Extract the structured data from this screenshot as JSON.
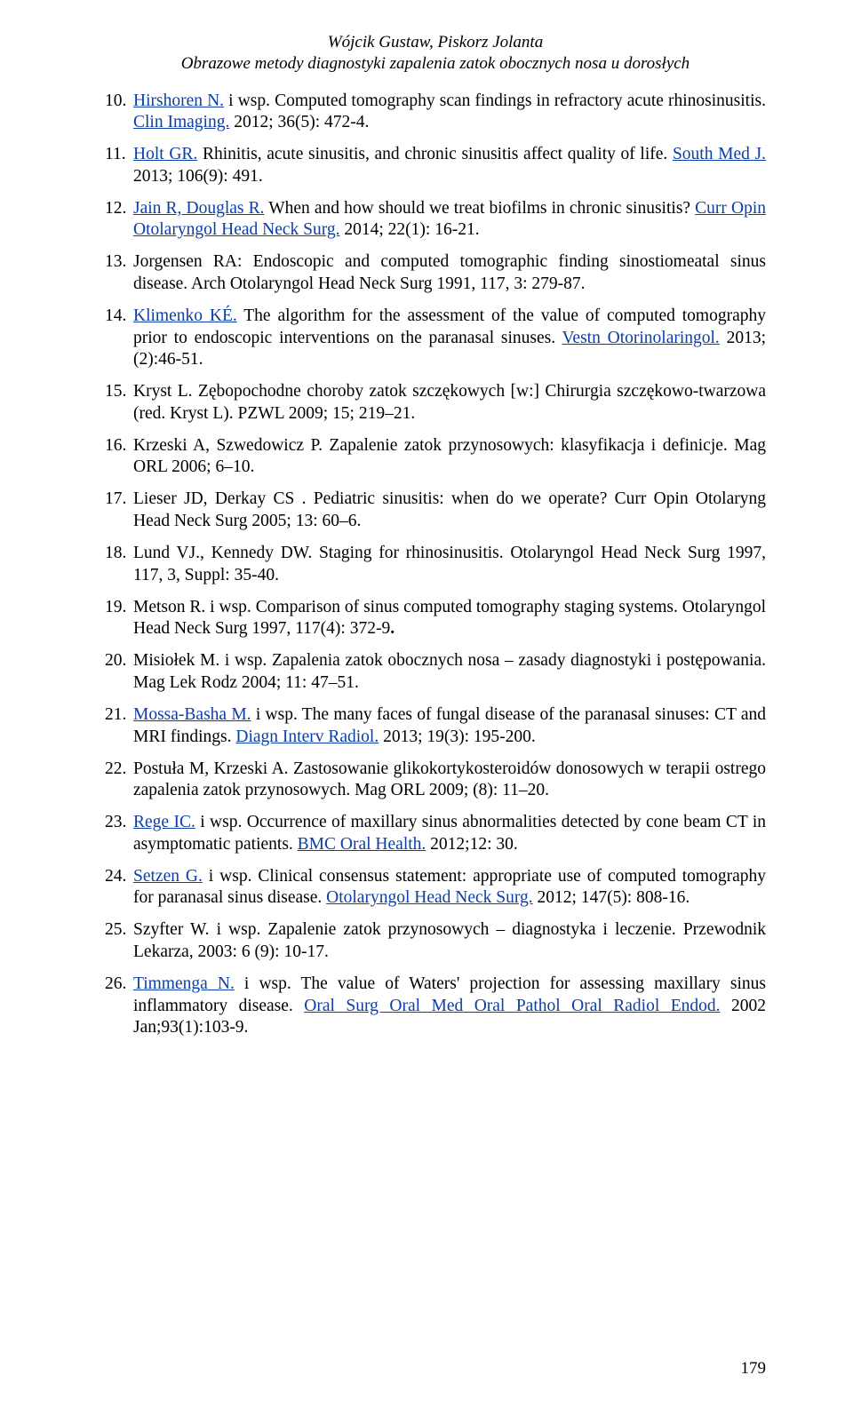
{
  "runningHead": {
    "authors": "Wójcik Gustaw, Piskorz Jolanta",
    "title": "Obrazowe metody diagnostyki zapalenia zatok obocznych nosa u dorosłych"
  },
  "references": [
    {
      "pre": "",
      "link1": "Hirshoren N.",
      "mid": " i wsp. Computed tomography scan findings in refractory acute rhinosinusitis. ",
      "link2": "Clin Imaging.",
      "tail": " 2012; 36(5): 472-4."
    },
    {
      "pre": "",
      "link1": "Holt GR.",
      "mid": " Rhinitis, acute sinusitis, and chronic sinusitis affect quality of life. ",
      "link2": "South Med J.",
      "tail": " 2013; 106(9): 491."
    },
    {
      "pre": "",
      "link1": "Jain R, Douglas R.",
      "mid": " When and how should we treat biofilms in chronic sinusitis? ",
      "link2": "Curr Opin Otolaryngol Head Neck Surg.",
      "tail": " 2014; 22(1): 16-21."
    },
    {
      "pre": "Jorgensen RA: Endoscopic and computed tomographic finding sinostiomeatal sinus disease. Arch Otolaryngol Head Neck Surg 1991, 117, 3: 279-87.",
      "link1": "",
      "mid": "",
      "link2": "",
      "tail": ""
    },
    {
      "pre": "",
      "link1": "Klimenko KÉ.",
      "mid": " The algorithm for the assessment of the value of computed tomography prior to endoscopic interventions on the paranasal sinuses. ",
      "link2": "Vestn Otorinolaringol.",
      "tail": " 2013;(2):46-51."
    },
    {
      "pre": "Kryst L. Zębopochodne choroby zatok szczękowych [w:] Chirurgia szczękowo-twarzowa (red. Kryst L). PZWL 2009; 15; 219–21.",
      "link1": "",
      "mid": "",
      "link2": "",
      "tail": ""
    },
    {
      "pre": "Krzeski A, Szwedowicz P. Zapalenie zatok przynosowych: klasyfikacja i definicje. Mag ORL 2006; 6–10.",
      "link1": "",
      "mid": "",
      "link2": "",
      "tail": ""
    },
    {
      "pre": "Lieser JD, Derkay CS . Pediatric sinusitis: when do we operate? Curr Opin Otolaryng Head Neck Surg 2005; 13: 60–6.",
      "link1": "",
      "mid": "",
      "link2": "",
      "tail": ""
    },
    {
      "pre": "Lund VJ., Kennedy DW. Staging for rhinosinusitis. Otolaryngol Head Neck Surg 1997, 117, 3, Suppl: 35-40.",
      "link1": "",
      "mid": "",
      "link2": "",
      "tail": ""
    },
    {
      "pre": "Metson R. i wsp. Comparison of sinus computed tomography staging systems. Otolaryngol Head Neck Surg 1997, 117(4): 372-9",
      "link1": "",
      "mid": "",
      "link2": "",
      "tail": "",
      "boldTail": "."
    },
    {
      "pre": "Misiołek M. i wsp. Zapalenia zatok obocznych nosa – zasady diagnostyki i postępowania. Mag Lek Rodz 2004; 11: 47–51.",
      "link1": "",
      "mid": "",
      "link2": "",
      "tail": ""
    },
    {
      "pre": "",
      "link1": "Mossa-Basha M.",
      "mid": " i wsp. The many faces of fungal disease of the paranasal sinuses: CT and MRI findings. ",
      "link2": "Diagn Interv Radiol.",
      "tail": " 2013; 19(3): 195-200."
    },
    {
      "pre": "Postuła M, Krzeski A. Zastosowanie glikokortykosteroidów donosowych w terapii ostrego zapalenia zatok przynosowych. Mag ORL 2009; (8): 11–20.",
      "link1": "",
      "mid": "",
      "link2": "",
      "tail": ""
    },
    {
      "pre": "",
      "link1": "Rege IC.",
      "mid": " i wsp. Occurrence of maxillary sinus abnormalities detected by cone beam CT in asymptomatic patients. ",
      "link2": "BMC Oral Health.",
      "tail": " 2012;12: 30."
    },
    {
      "pre": "",
      "link1": "Setzen G.",
      "mid": " i wsp. Clinical consensus statement: appropriate use of computed tomography for paranasal sinus disease. ",
      "link2": "Otolaryngol Head Neck Surg.",
      "tail": " 2012; 147(5): 808-16."
    },
    {
      "pre": "Szyfter W. i wsp. Zapalenie zatok przynosowych – diagnostyka i leczenie. Przewodnik Lekarza, 2003: 6 (9): 10-17.",
      "link1": "",
      "mid": "",
      "link2": "",
      "tail": ""
    },
    {
      "pre": "",
      "link1": "Timmenga N.",
      "mid": " i wsp. The value of Waters' projection for assessing maxillary sinus inflammatory disease. ",
      "link2": "Oral Surg Oral Med Oral Pathol Oral Radiol Endod.",
      "tail": " 2002 Jan;93(1):103-9."
    }
  ],
  "pageNumber": "179",
  "colors": {
    "link": "#0b3ea8",
    "text": "#000000",
    "background": "#ffffff"
  },
  "typography": {
    "bodyFontSizePt": 14.5,
    "headerItalic": true,
    "fontFamily": "Times New Roman"
  }
}
